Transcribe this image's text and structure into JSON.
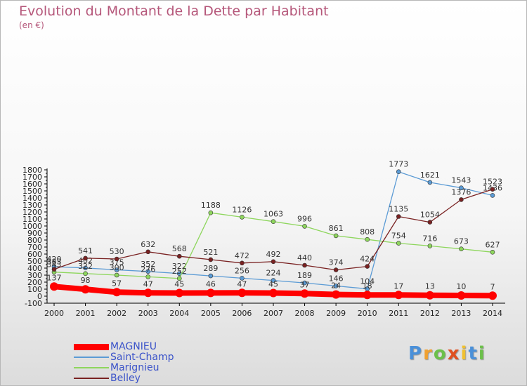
{
  "title": "Evolution du Montant de la Dette par Habitant",
  "unit_label": "(en €)",
  "logo": {
    "letters": [
      "P",
      "r",
      "o",
      "x",
      "i",
      "t",
      "i"
    ],
    "colors": [
      "#4a90d9",
      "#f0a030",
      "#6cc04a",
      "#e05020",
      "#f0c030",
      "#4a90d9",
      "#6cc04a"
    ]
  },
  "chart_data": {
    "type": "line",
    "title": "Evolution du Montant de la Dette par Habitant",
    "ylabel": "(en €)",
    "xlabel": "",
    "x": [
      2000,
      2001,
      2002,
      2003,
      2004,
      2005,
      2006,
      2007,
      2008,
      2009,
      2010,
      2011,
      2012,
      2013,
      2014
    ],
    "ylim": [
      -100,
      1800
    ],
    "ytick_step": 100,
    "grid": false,
    "legend_position": "bottom-left",
    "series": [
      {
        "name": "MAGNIEU",
        "color": "#ff0000",
        "width": "thick",
        "values": [
          137,
          98,
          57,
          47,
          45,
          46,
          47,
          45,
          37,
          24,
          18,
          17,
          13,
          10,
          7
        ]
      },
      {
        "name": "Saint-Champ",
        "color": "#5b9bd5",
        "width": "thin",
        "values": [
          420,
          402,
          375,
          352,
          322,
          289,
          256,
          224,
          189,
          146,
          104,
          1773,
          1621,
          1543,
          1436
        ]
      },
      {
        "name": "Marignieu",
        "color": "#8ed65d",
        "width": "thin",
        "values": [
          343,
          322,
          300,
          276,
          252,
          1188,
          1126,
          1063,
          996,
          861,
          808,
          754,
          716,
          673,
          627
        ]
      },
      {
        "name": "Belley",
        "color": "#7a2222",
        "width": "thin",
        "values": [
          383,
          541,
          530,
          632,
          568,
          521,
          472,
          492,
          440,
          374,
          424,
          1135,
          1054,
          1376,
          1523
        ]
      }
    ]
  }
}
